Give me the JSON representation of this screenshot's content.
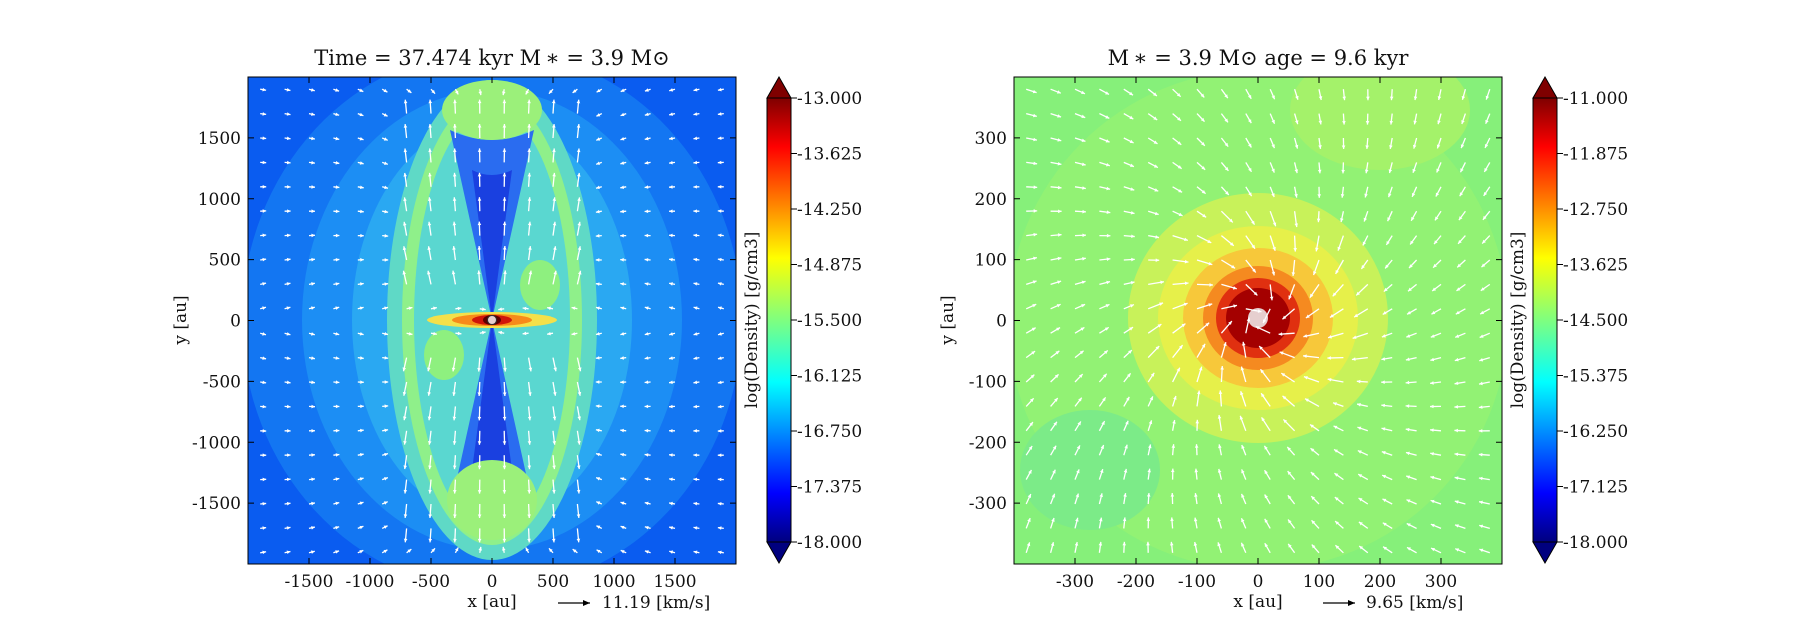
{
  "chart_data": [
    {
      "type": "heatmap",
      "title": "Time = 37.474 kyr    M ∗ = 3.9 M⊙",
      "xlabel": "x [au]",
      "ylabel": "y [au]",
      "xlim": [
        -2000,
        2000
      ],
      "ylim": [
        -2000,
        2000
      ],
      "xticks": [
        -1500,
        -1000,
        -500,
        0,
        500,
        1000,
        1500
      ],
      "yticks": [
        1500,
        1000,
        500,
        0,
        -500,
        -1000,
        -1500
      ],
      "colorbar": {
        "label": "log(Density) [g/cm3]",
        "range": [
          -18.0,
          -13.0
        ],
        "ticks": [
          "-13.000",
          "-13.625",
          "-14.250",
          "-14.875",
          "-15.500",
          "-16.125",
          "-16.750",
          "-17.375",
          "-18.000"
        ],
        "colormap": "jet"
      },
      "quiver_key": "11.19 [km/s]",
      "structure": "bipolar outflow cavities with equatorial disk"
    },
    {
      "type": "heatmap",
      "title": "M ∗ = 3.9 M⊙          age = 9.6 kyr",
      "xlabel": "x [au]",
      "ylabel": "y [au]",
      "xlim": [
        -400,
        400
      ],
      "ylim": [
        -400,
        400
      ],
      "xticks": [
        -300,
        -200,
        -100,
        0,
        100,
        200,
        300
      ],
      "yticks": [
        300,
        200,
        100,
        0,
        -100,
        -200,
        -300
      ],
      "colorbar": {
        "label": "log(Density) [g/cm3]",
        "range": [
          -18.0,
          -11.0
        ],
        "ticks": [
          "-11.000",
          "-11.875",
          "-12.750",
          "-13.625",
          "-14.500",
          "-15.375",
          "-16.250",
          "-17.125",
          "-18.000"
        ],
        "colormap": "jet"
      },
      "quiver_key": "9.65 [km/s]",
      "structure": "central dense disk with inward spiraling flow"
    }
  ],
  "colors": {
    "arrows": "#ffffff",
    "sink": "#e6cfcf"
  }
}
